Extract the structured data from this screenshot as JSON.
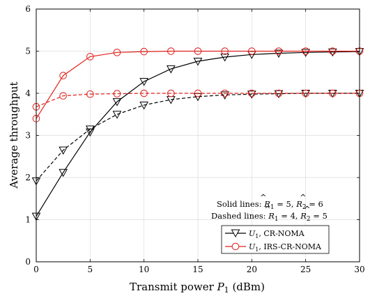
{
  "chart_data": {
    "type": "line",
    "xlabel_text": "Transmit power ",
    "xlabel_var": "P",
    "xlabel_sub": "1",
    "xlabel_unit": " (dBm)",
    "ylabel": "Average throughput",
    "xlim": [
      0,
      30
    ],
    "ylim": [
      0,
      6
    ],
    "xticks": [
      0,
      5,
      10,
      15,
      20,
      25,
      30
    ],
    "yticks": [
      0,
      1,
      2,
      3,
      4,
      5,
      6
    ],
    "grid": true,
    "x": [
      0,
      2.5,
      5,
      7.5,
      10,
      12.5,
      15,
      17.5,
      20,
      22.5,
      25,
      27.5,
      30
    ],
    "series": [
      {
        "key": "cr_solid",
        "legend": "U1, CR-NOMA",
        "color": "#000000",
        "marker": "triangle-down",
        "style": "solid",
        "values": [
          1.08,
          2.12,
          3.08,
          3.8,
          4.28,
          4.58,
          4.76,
          4.86,
          4.92,
          4.95,
          4.97,
          4.98,
          4.99
        ]
      },
      {
        "key": "cr_dashed",
        "legend": "",
        "color": "#000000",
        "marker": "triangle-down",
        "style": "dashed",
        "values": [
          1.92,
          2.65,
          3.15,
          3.5,
          3.72,
          3.85,
          3.92,
          3.96,
          3.98,
          3.99,
          4.0,
          4.0,
          4.0
        ]
      },
      {
        "key": "irs_solid",
        "legend": "U1, IRS-CR-NOMA",
        "color": "#e0201b",
        "marker": "circle",
        "style": "solid",
        "values": [
          3.4,
          4.42,
          4.87,
          4.97,
          4.99,
          5.0,
          5.0,
          5.0,
          5.0,
          5.0,
          5.0,
          5.0,
          5.0
        ]
      },
      {
        "key": "irs_dashed",
        "legend": "",
        "color": "#e0201b",
        "marker": "circle",
        "style": "dashed",
        "values": [
          3.68,
          3.94,
          3.98,
          3.99,
          4.0,
          4.0,
          4.0,
          4.0,
          4.0,
          4.0,
          4.0,
          4.0,
          4.0
        ]
      }
    ],
    "legend": {
      "placement": "lower-right",
      "entries": [
        {
          "sym": "U",
          "sub": "1",
          "rest": ", CR-NOMA",
          "color": "#000000",
          "marker": "triangle-down"
        },
        {
          "sym": "U",
          "sub": "1",
          "rest": ", IRS-CR-NOMA",
          "color": "#e0201b",
          "marker": "circle"
        }
      ]
    },
    "annotations": {
      "solid": {
        "prefix": "Solid lines: ",
        "r1": "5",
        "r2": "6"
      },
      "dashed": {
        "prefix": "Dashed lines: ",
        "r1": "4",
        "r2": "5"
      },
      "R": "R",
      "hat": "^",
      "sub1": "1",
      "sub2": "2",
      "eq": " = ",
      "comma": ", "
    }
  }
}
